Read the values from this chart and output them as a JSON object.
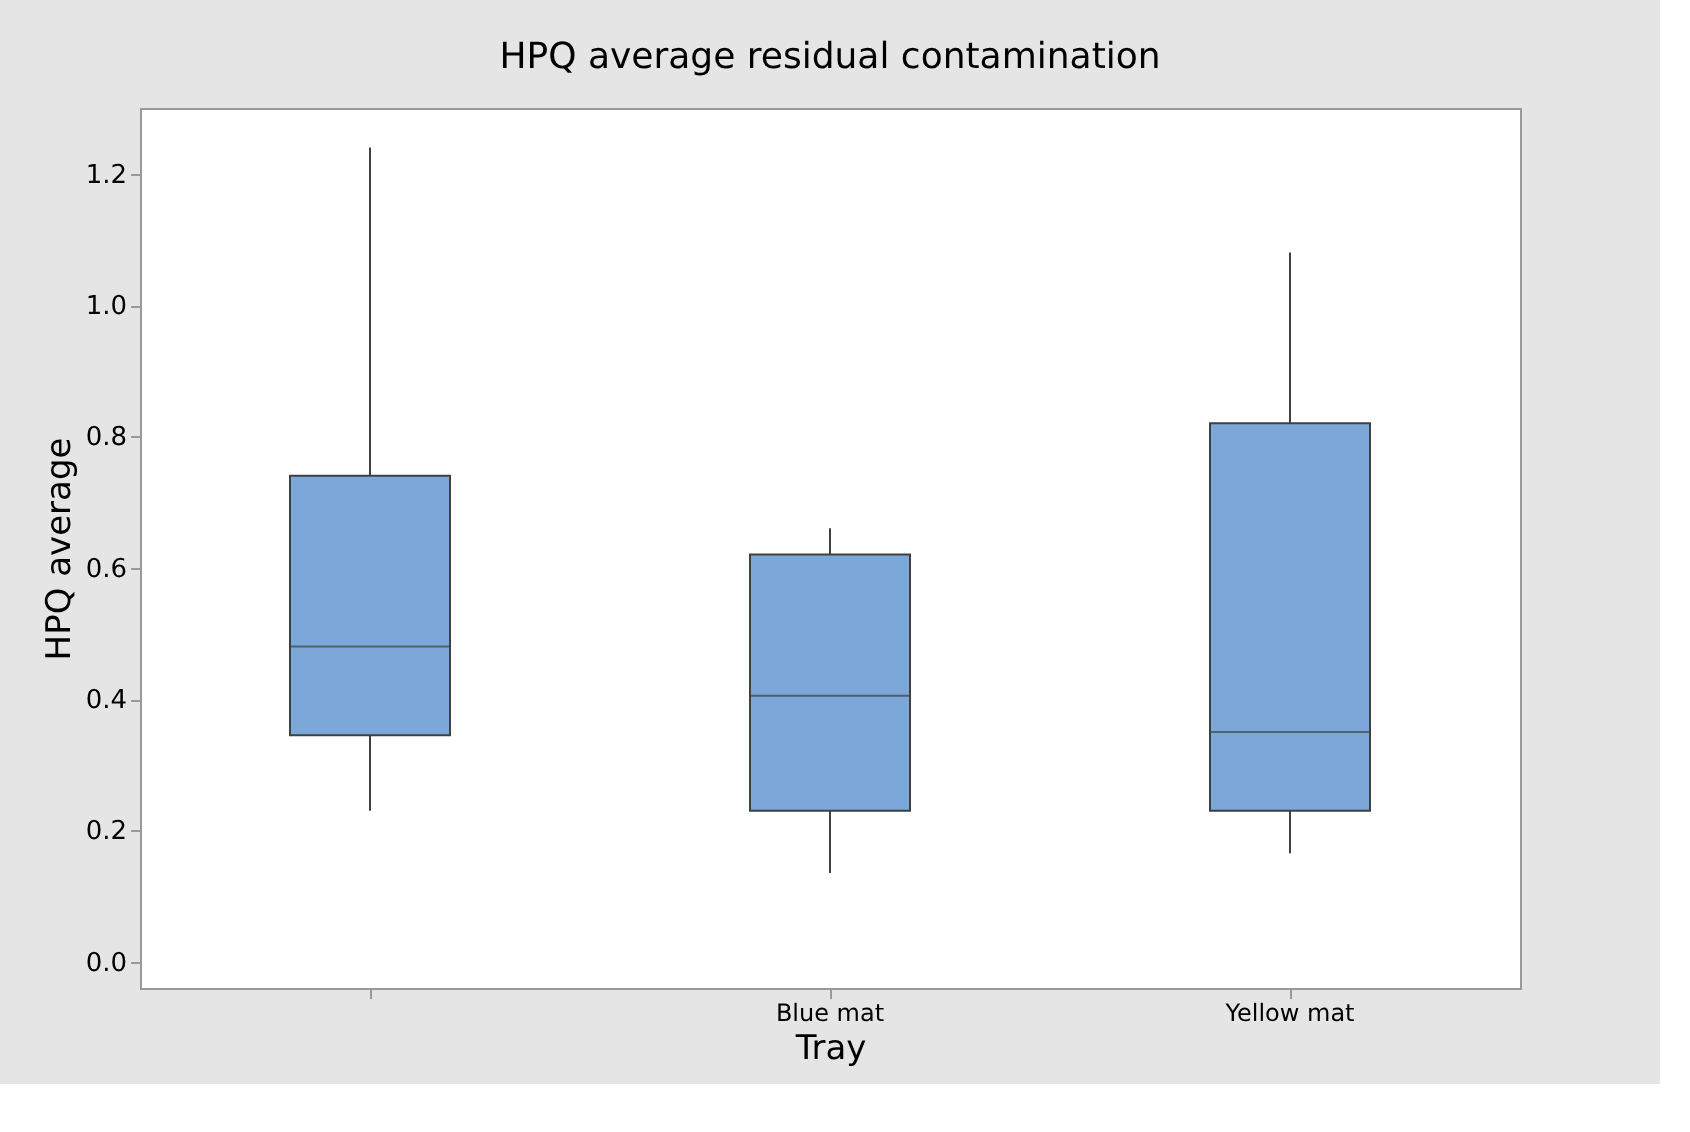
{
  "chart_data": {
    "type": "box",
    "title": "HPQ average residual contamination",
    "xlabel": "Tray",
    "ylabel": "HPQ average",
    "categories": [
      null,
      "Blue mat",
      "Yellow mat"
    ],
    "color": "#7ba7d9",
    "boxes": [
      {
        "low": 0.23,
        "q1": 0.345,
        "median": 0.48,
        "q3": 0.74,
        "high": 1.24
      },
      {
        "low": 0.135,
        "q1": 0.23,
        "median": 0.405,
        "q3": 0.62,
        "high": 0.66
      },
      {
        "low": 0.165,
        "q1": 0.23,
        "median": 0.35,
        "q3": 0.82,
        "high": 1.08
      }
    ],
    "ylim": [
      -0.04,
      1.3
    ],
    "yticks": [
      {
        "value": 0,
        "label": "0.0"
      },
      0.2,
      0.4,
      0.6,
      0.8,
      {
        "value": 1,
        "label": "1.0"
      },
      1.2
    ]
  }
}
